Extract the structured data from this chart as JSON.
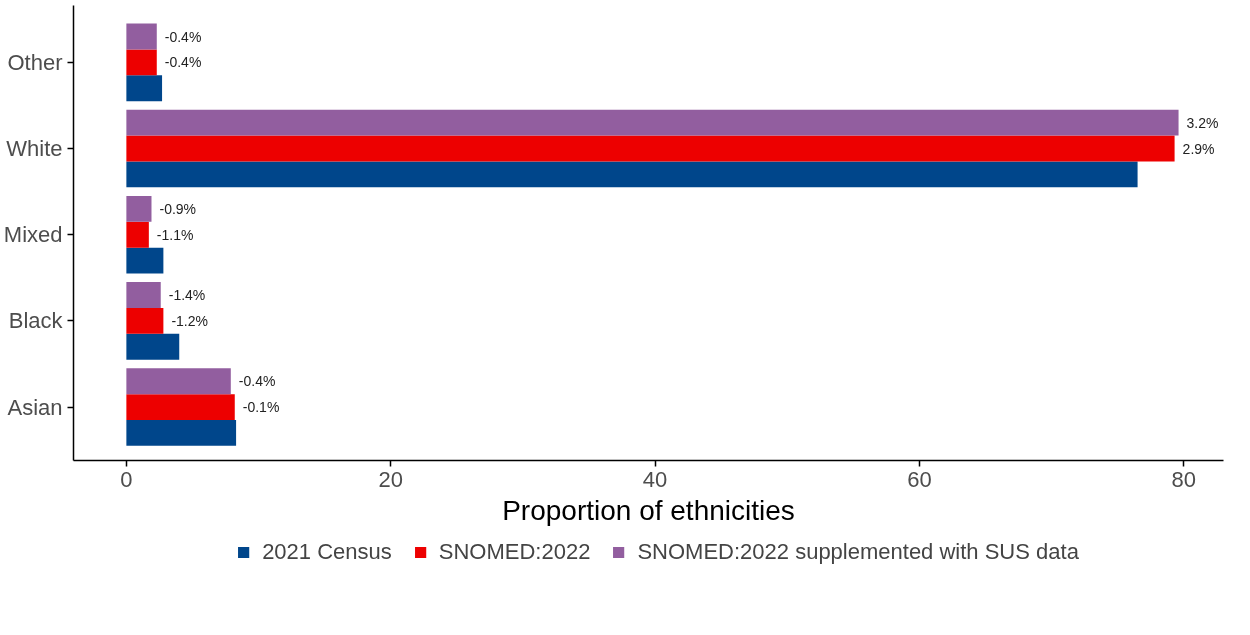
{
  "chart_data": {
    "type": "bar",
    "orientation": "horizontal",
    "xlabel": "Proportion of ethnicities",
    "categories": [
      "Other",
      "White",
      "Mixed",
      "Black",
      "Asian"
    ],
    "series": [
      {
        "name": "2021 Census",
        "color": "#00468b",
        "values": [
          2.7,
          76.5,
          2.8,
          4.0,
          8.3
        ]
      },
      {
        "name": "SNOMED:2022",
        "color": "#ed0000",
        "values": [
          2.3,
          79.3,
          1.7,
          2.8,
          8.2
        ]
      },
      {
        "name": "SNOMED:2022 supplemented with SUS data",
        "color": "#925e9f",
        "values": [
          2.3,
          79.6,
          1.9,
          2.6,
          7.9
        ]
      }
    ],
    "annotations": [
      {
        "text": "-0.4%",
        "x": 2.3,
        "y": "Other"
      },
      {
        "text": "-0.4%",
        "x": 2.3,
        "y": "Other"
      },
      {
        "text": "2.9%",
        "x": 79.3,
        "y": "White"
      },
      {
        "text": "3.2%",
        "x": 79.6,
        "y": "White"
      },
      {
        "text": "-1.1%",
        "x": 1.7,
        "y": "Mixed"
      },
      {
        "text": "-0.9%",
        "x": 1.9,
        "y": "Mixed"
      },
      {
        "text": "-1.2%",
        "x": 2.8,
        "y": "Black"
      },
      {
        "text": "-1.4%",
        "x": 2.6,
        "y": "Black"
      },
      {
        "text": "-0.1%",
        "x": 8.2,
        "y": "Asian"
      },
      {
        "text": "-0.4%",
        "x": 7.9,
        "y": "Asian"
      }
    ],
    "xlim": [
      -4,
      83
    ],
    "xticks": [
      0,
      20,
      40,
      60,
      80
    ],
    "grid": false,
    "legend": "bottom"
  }
}
